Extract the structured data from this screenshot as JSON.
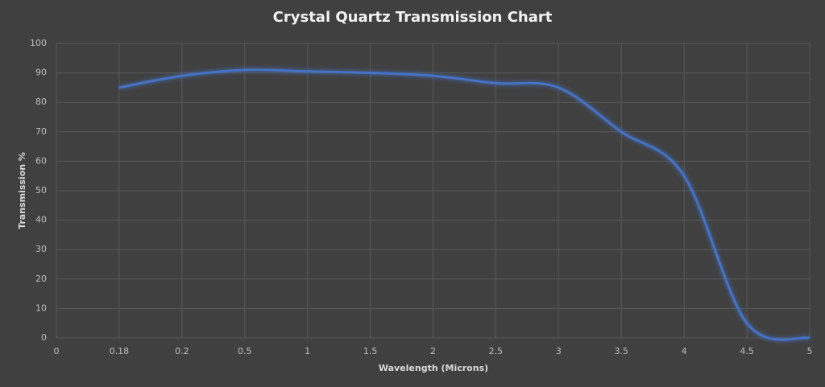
{
  "chart_data": {
    "type": "line",
    "title": "Crystal Quartz Transmission Chart",
    "x_label": "Wavelength (Microns)",
    "y_label": "Transmission %",
    "categories": [
      "0",
      "0.18",
      "0.2",
      "0.5",
      "1",
      "1.5",
      "2",
      "2.5",
      "3",
      "3.5",
      "4",
      "4.5",
      "5"
    ],
    "series": [
      {
        "name": "Transmission",
        "color": "#4472c4",
        "values": [
          null,
          85,
          89,
          91,
          90.5,
          90,
          89,
          86.5,
          85,
          70,
          55,
          5,
          0
        ]
      }
    ],
    "ylim": [
      0,
      100
    ],
    "yticks": [
      0,
      10,
      20,
      30,
      40,
      50,
      60,
      70,
      80,
      90,
      100
    ],
    "grid": true,
    "smooth": true
  }
}
